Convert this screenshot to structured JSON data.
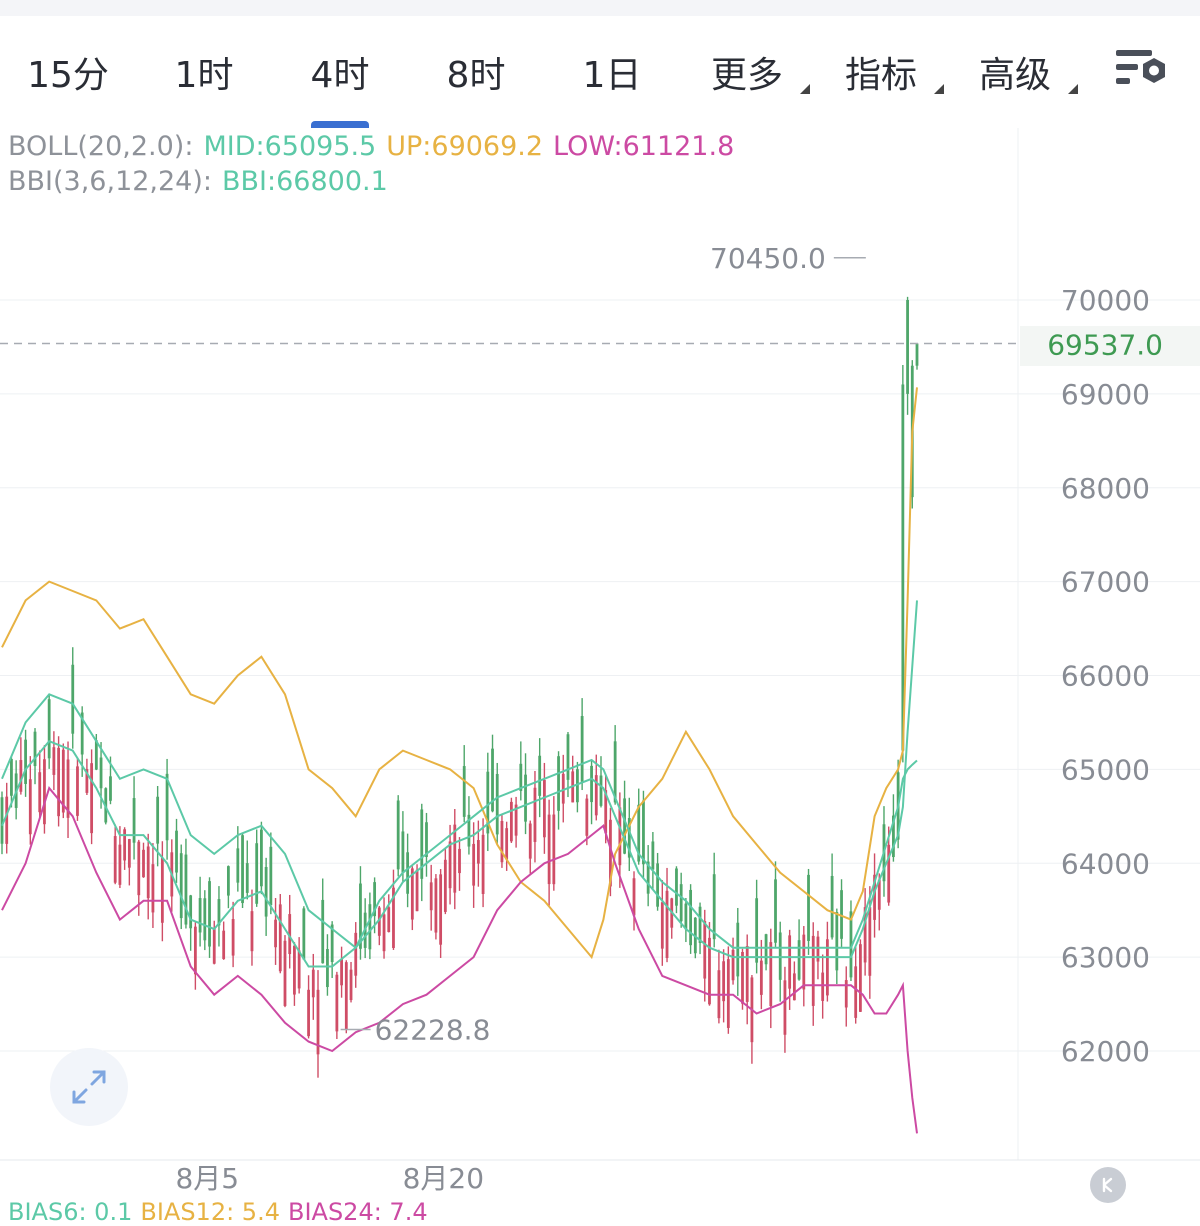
{
  "tabs": [
    {
      "label": "15分",
      "active": false,
      "dropdown": false
    },
    {
      "label": "1时",
      "active": false,
      "dropdown": false
    },
    {
      "label": "4时",
      "active": true,
      "dropdown": false
    },
    {
      "label": "8时",
      "active": false,
      "dropdown": false
    },
    {
      "label": "1日",
      "active": false,
      "dropdown": false
    },
    {
      "label": "更多",
      "active": false,
      "dropdown": true
    },
    {
      "label": "指标",
      "active": false,
      "dropdown": true
    },
    {
      "label": "高级",
      "active": false,
      "dropdown": true
    }
  ],
  "settings_icon": "chart-settings-icon",
  "legend": {
    "boll_name": "BOLL(20,2.0):",
    "boll_mid": "MID:65095.5",
    "boll_up": "UP:69069.2",
    "boll_low": "LOW:61121.8",
    "bbi_name": "BBI(3,6,12,24):",
    "bbi_value": "BBI:66800.1"
  },
  "bottom_indicator": {
    "bias6": "BIAS6: 0.1",
    "bias12": "BIAS12: 5.4",
    "bias24": "BIAS24: 7.4"
  },
  "colors": {
    "up": "#4ea66a",
    "down": "#cf4d66",
    "mid": "#5cc9a7",
    "upper": "#e7b243",
    "lower": "#cc4aa3",
    "bbi": "#5cc9a7",
    "label_gray": "#888c94",
    "current_price": "#3e9a52",
    "active_tab": "#3a6fd1"
  },
  "chart_data": {
    "type": "candlestick",
    "ylim": [
      61000,
      71000
    ],
    "y_ticks": [
      70000,
      69000,
      68000,
      67000,
      66000,
      65000,
      64000,
      63000,
      62000
    ],
    "y_tick_labels": [
      "70000",
      "69000",
      "68000",
      "67000",
      "66000",
      "65000",
      "64000",
      "63000",
      "62000"
    ],
    "x_labels": [
      {
        "index": 87,
        "label": "8月5"
      },
      {
        "index": 187,
        "label": "8月20"
      }
    ],
    "current_price": 69537.0,
    "current_price_label": "69537.0",
    "high_mark": {
      "index": 184,
      "value": 70450.0,
      "label": "70450.0"
    },
    "low_mark": {
      "index": 79,
      "value": 62228.8,
      "label": "62228.8"
    },
    "upper_band": [
      [
        0,
        66300
      ],
      [
        10,
        66800
      ],
      [
        20,
        67000
      ],
      [
        30,
        66900
      ],
      [
        40,
        66800
      ],
      [
        50,
        66500
      ],
      [
        60,
        66600
      ],
      [
        70,
        66200
      ],
      [
        80,
        65800
      ],
      [
        90,
        65700
      ],
      [
        100,
        66000
      ],
      [
        110,
        66200
      ],
      [
        120,
        65800
      ],
      [
        130,
        65000
      ],
      [
        140,
        64800
      ],
      [
        150,
        64500
      ],
      [
        160,
        65000
      ],
      [
        170,
        65200
      ],
      [
        180,
        65100
      ],
      [
        190,
        65000
      ],
      [
        200,
        64800
      ],
      [
        210,
        64200
      ],
      [
        220,
        63800
      ],
      [
        230,
        63600
      ],
      [
        240,
        63300
      ],
      [
        250,
        63000
      ],
      [
        255,
        63400
      ],
      [
        260,
        64100
      ],
      [
        270,
        64600
      ],
      [
        280,
        64900
      ],
      [
        290,
        65400
      ],
      [
        300,
        65000
      ],
      [
        310,
        64500
      ],
      [
        320,
        64200
      ],
      [
        330,
        63900
      ],
      [
        340,
        63700
      ],
      [
        350,
        63500
      ],
      [
        360,
        63400
      ],
      [
        365,
        63700
      ],
      [
        370,
        64500
      ],
      [
        375,
        64800
      ],
      [
        380,
        65000
      ],
      [
        382,
        65200
      ],
      [
        384,
        66800
      ],
      [
        386,
        68600
      ],
      [
        388,
        69069
      ]
    ],
    "lower_band": [
      [
        0,
        63500
      ],
      [
        10,
        64000
      ],
      [
        20,
        64800
      ],
      [
        30,
        64500
      ],
      [
        40,
        63900
      ],
      [
        50,
        63400
      ],
      [
        60,
        63600
      ],
      [
        70,
        63600
      ],
      [
        80,
        62900
      ],
      [
        90,
        62600
      ],
      [
        100,
        62800
      ],
      [
        110,
        62600
      ],
      [
        120,
        62300
      ],
      [
        130,
        62100
      ],
      [
        140,
        62000
      ],
      [
        150,
        62200
      ],
      [
        160,
        62300
      ],
      [
        170,
        62500
      ],
      [
        180,
        62600
      ],
      [
        190,
        62800
      ],
      [
        200,
        63000
      ],
      [
        210,
        63500
      ],
      [
        220,
        63800
      ],
      [
        230,
        64000
      ],
      [
        240,
        64100
      ],
      [
        250,
        64300
      ],
      [
        255,
        64400
      ],
      [
        260,
        64000
      ],
      [
        270,
        63300
      ],
      [
        280,
        62800
      ],
      [
        290,
        62700
      ],
      [
        300,
        62600
      ],
      [
        310,
        62600
      ],
      [
        320,
        62400
      ],
      [
        330,
        62500
      ],
      [
        340,
        62700
      ],
      [
        350,
        62700
      ],
      [
        360,
        62700
      ],
      [
        365,
        62600
      ],
      [
        370,
        62400
      ],
      [
        375,
        62400
      ],
      [
        380,
        62600
      ],
      [
        382,
        62700
      ],
      [
        384,
        62000
      ],
      [
        386,
        61500
      ],
      [
        388,
        61122
      ]
    ],
    "mid_band": [
      [
        0,
        64900
      ],
      [
        10,
        65500
      ],
      [
        20,
        65800
      ],
      [
        30,
        65700
      ],
      [
        40,
        65300
      ],
      [
        50,
        64900
      ],
      [
        60,
        65000
      ],
      [
        70,
        64900
      ],
      [
        80,
        64300
      ],
      [
        90,
        64100
      ],
      [
        100,
        64300
      ],
      [
        110,
        64400
      ],
      [
        120,
        64100
      ],
      [
        130,
        63500
      ],
      [
        140,
        63300
      ],
      [
        150,
        63100
      ],
      [
        160,
        63600
      ],
      [
        170,
        63900
      ],
      [
        180,
        64100
      ],
      [
        190,
        64300
      ],
      [
        200,
        64500
      ],
      [
        210,
        64700
      ],
      [
        220,
        64800
      ],
      [
        230,
        64900
      ],
      [
        240,
        65000
      ],
      [
        250,
        65100
      ],
      [
        255,
        65000
      ],
      [
        260,
        64700
      ],
      [
        270,
        64100
      ],
      [
        280,
        63800
      ],
      [
        290,
        63600
      ],
      [
        300,
        63300
      ],
      [
        310,
        63100
      ],
      [
        320,
        63100
      ],
      [
        330,
        63100
      ],
      [
        340,
        63100
      ],
      [
        350,
        63100
      ],
      [
        360,
        63100
      ],
      [
        365,
        63400
      ],
      [
        370,
        63800
      ],
      [
        375,
        64200
      ],
      [
        380,
        64600
      ],
      [
        382,
        64900
      ],
      [
        384,
        65000
      ],
      [
        386,
        65050
      ],
      [
        388,
        65095
      ]
    ],
    "bbi": [
      [
        0,
        64400
      ],
      [
        10,
        65000
      ],
      [
        20,
        65300
      ],
      [
        30,
        65200
      ],
      [
        40,
        64800
      ],
      [
        50,
        64300
      ],
      [
        60,
        64300
      ],
      [
        70,
        64000
      ],
      [
        80,
        63400
      ],
      [
        90,
        63300
      ],
      [
        100,
        63600
      ],
      [
        110,
        63700
      ],
      [
        120,
        63300
      ],
      [
        130,
        62900
      ],
      [
        140,
        62900
      ],
      [
        150,
        63100
      ],
      [
        160,
        63400
      ],
      [
        170,
        63800
      ],
      [
        180,
        64000
      ],
      [
        190,
        64200
      ],
      [
        200,
        64300
      ],
      [
        210,
        64500
      ],
      [
        220,
        64600
      ],
      [
        230,
        64700
      ],
      [
        240,
        64800
      ],
      [
        250,
        64900
      ],
      [
        255,
        64800
      ],
      [
        260,
        64500
      ],
      [
        270,
        63900
      ],
      [
        280,
        63600
      ],
      [
        290,
        63300
      ],
      [
        300,
        63100
      ],
      [
        310,
        63000
      ],
      [
        320,
        63000
      ],
      [
        330,
        63000
      ],
      [
        340,
        63000
      ],
      [
        350,
        63000
      ],
      [
        360,
        63000
      ],
      [
        365,
        63300
      ],
      [
        370,
        63700
      ],
      [
        375,
        64000
      ],
      [
        380,
        64300
      ],
      [
        382,
        64600
      ],
      [
        384,
        65400
      ],
      [
        386,
        66100
      ],
      [
        388,
        66800
      ]
    ]
  }
}
